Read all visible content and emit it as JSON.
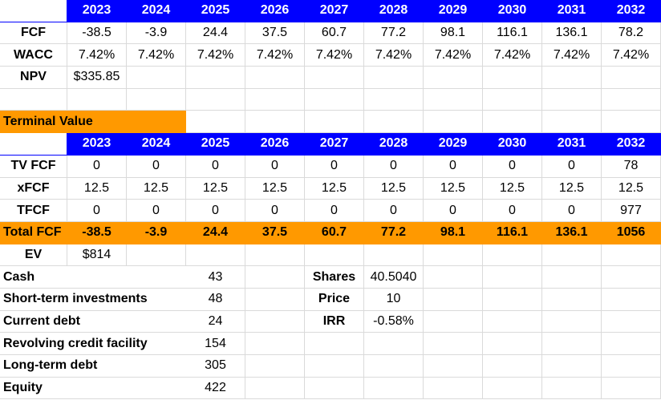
{
  "years": [
    "2023",
    "2024",
    "2025",
    "2026",
    "2027",
    "2028",
    "2029",
    "2030",
    "2031",
    "2032"
  ],
  "rows": {
    "fcf": {
      "label": "FCF",
      "values": [
        "-38.5",
        "-3.9",
        "24.4",
        "37.5",
        "60.7",
        "77.2",
        "98.1",
        "116.1",
        "136.1",
        "78.2"
      ]
    },
    "wacc": {
      "label": "WACC",
      "values": [
        "7.42%",
        "7.42%",
        "7.42%",
        "7.42%",
        "7.42%",
        "7.42%",
        "7.42%",
        "7.42%",
        "7.42%",
        "7.42%"
      ]
    },
    "npv": {
      "label": "NPV",
      "value": "$335.85"
    }
  },
  "terminal": {
    "title": "Terminal Value",
    "tv_fcf": {
      "label": "TV FCF",
      "values": [
        "0",
        "0",
        "0",
        "0",
        "0",
        "0",
        "0",
        "0",
        "0",
        "78"
      ]
    },
    "xfcf": {
      "label": "xFCF",
      "values": [
        "12.5",
        "12.5",
        "12.5",
        "12.5",
        "12.5",
        "12.5",
        "12.5",
        "12.5",
        "12.5",
        "12.5"
      ]
    },
    "tfcf": {
      "label": "TFCF",
      "values": [
        "0",
        "0",
        "0",
        "0",
        "0",
        "0",
        "0",
        "0",
        "0",
        "977"
      ]
    },
    "total_fcf": {
      "label": "Total FCF",
      "values": [
        "-38.5",
        "-3.9",
        "24.4",
        "37.5",
        "60.7",
        "77.2",
        "98.1",
        "116.1",
        "136.1",
        "1056"
      ]
    }
  },
  "ev": {
    "label": "EV",
    "value": "$814"
  },
  "balance": [
    {
      "label": "Cash",
      "value": "43"
    },
    {
      "label": "Short-term investments",
      "value": "48"
    },
    {
      "label": "Current debt",
      "value": "24"
    },
    {
      "label": "Revolving credit facility",
      "value": "154"
    },
    {
      "label": "Long-term debt",
      "value": "305"
    },
    {
      "label": "Equity",
      "value": "422"
    }
  ],
  "metrics": [
    {
      "label": "Shares",
      "value": "40.5040"
    },
    {
      "label": "Price",
      "value": "10"
    },
    {
      "label": "IRR",
      "value": "-0.58%"
    }
  ]
}
